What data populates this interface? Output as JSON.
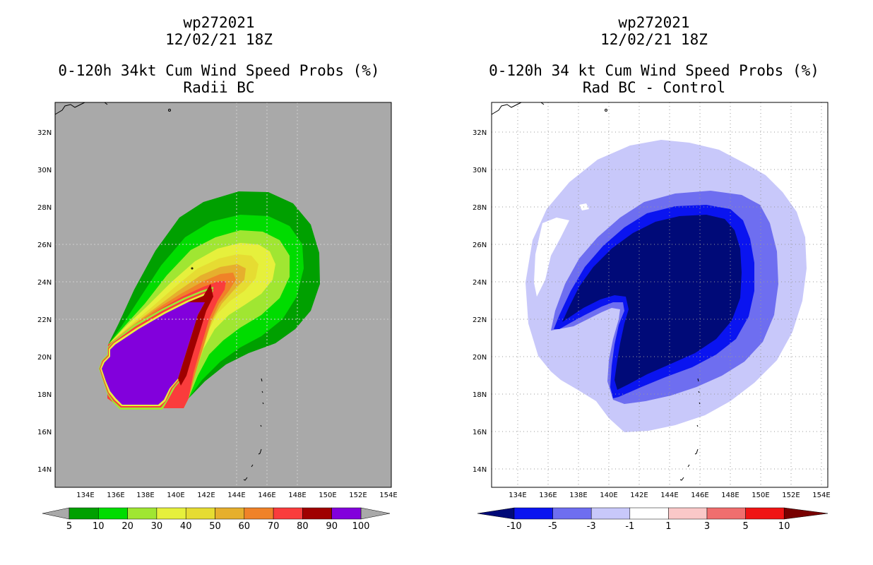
{
  "left_panel": {
    "title_lines": [
      "wp272021",
      "12/02/21 18Z",
      "0-120h 34kt Cum Wind Speed Probs (%)",
      "Radii BC"
    ],
    "background_color": "#a9a9a9",
    "colorbar": {
      "labels": [
        "5",
        "10",
        "20",
        "30",
        "40",
        "50",
        "60",
        "70",
        "80",
        "90",
        "100"
      ],
      "colors": [
        "#00a000",
        "#00dc00",
        "#a0e632",
        "#e6f03c",
        "#e6dc32",
        "#e6af2d",
        "#f08228",
        "#fa3c3c",
        "#a00000",
        "#8200dc"
      ]
    }
  },
  "right_panel": {
    "title_lines": [
      "wp272021",
      "12/02/21 18Z",
      "0-120h 34 kt Cum Wind Speed Probs (%)",
      "Rad BC - Control"
    ],
    "background_color": "#ffffff",
    "colorbar": {
      "labels": [
        "-10",
        "-5",
        "-3",
        "-1",
        "1",
        "3",
        "5",
        "10"
      ],
      "colors": [
        "#000a78",
        "#0a14f0",
        "#6e6ef0",
        "#c8c8fa",
        "#ffffff",
        "#fac8c8",
        "#f06e6e",
        "#f01414",
        "#780000"
      ]
    }
  },
  "chart_data": [
    {
      "type": "contour-map",
      "title": "0-120h 34kt Cum Wind Speed Probs (%)",
      "subtitle": "Radii BC",
      "storm": "wp272021",
      "time": "12/02/21 18Z",
      "x_range": [
        132,
        154
      ],
      "y_range": [
        13,
        33.5
      ],
      "x_ticks": [
        134,
        136,
        138,
        140,
        142,
        144,
        146,
        148,
        150,
        152,
        154
      ],
      "y_ticks": [
        14,
        16,
        18,
        20,
        22,
        24,
        26,
        28,
        30,
        32
      ],
      "x_tick_labels": [
        "134E",
        "136E",
        "138E",
        "140E",
        "142E",
        "144E",
        "146E",
        "148E",
        "150E",
        "152E",
        "154E"
      ],
      "y_tick_labels": [
        "14N",
        "16N",
        "18N",
        "20N",
        "22N",
        "24N",
        "26N",
        "28N",
        "30N",
        "32N"
      ],
      "contour_levels": [
        5,
        10,
        20,
        30,
        40,
        50,
        60,
        70,
        80,
        90,
        100
      ]
    },
    {
      "type": "contour-map",
      "title": "0-120h 34 kt Cum Wind Speed Probs (%)",
      "subtitle": "Rad BC - Control",
      "storm": "wp272021",
      "time": "12/02/21 18Z",
      "x_range": [
        132,
        154
      ],
      "y_range": [
        13,
        33.5
      ],
      "x_ticks": [
        134,
        136,
        138,
        140,
        142,
        144,
        146,
        148,
        150,
        152,
        154
      ],
      "y_ticks": [
        14,
        16,
        18,
        20,
        22,
        24,
        26,
        28,
        30,
        32
      ],
      "x_tick_labels": [
        "134E",
        "136E",
        "138E",
        "140E",
        "142E",
        "144E",
        "146E",
        "148E",
        "150E",
        "152E",
        "154E"
      ],
      "y_tick_labels": [
        "14N",
        "16N",
        "18N",
        "20N",
        "22N",
        "24N",
        "26N",
        "28N",
        "30N",
        "32N"
      ],
      "contour_levels": [
        -10,
        -5,
        -3,
        -1,
        1,
        3,
        5,
        10
      ]
    }
  ]
}
